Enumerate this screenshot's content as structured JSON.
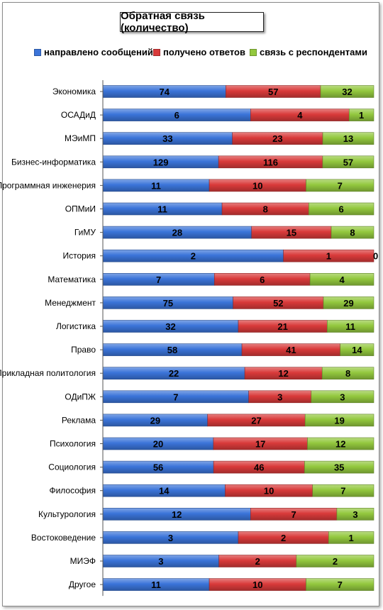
{
  "colors": {
    "series": [
      "#3b74d9",
      "#d93a3a",
      "#93c83e"
    ]
  },
  "chart_data": {
    "type": "bar",
    "orientation": "horizontal",
    "stacked": "100%",
    "title": "Обратная связь (количество)",
    "legend_position": "top",
    "categories": [
      "Экономика",
      "ОСАДиД",
      "МЭиМП",
      "Бизнес-информатика",
      "Программная инженерия",
      "ОПМиИ",
      "ГиМУ",
      "История",
      "Математика",
      "Менеджмент",
      "Логистика",
      "Право",
      "Прикладная политология",
      "ОДиПЖ",
      "Реклама",
      "Психология",
      "Социология",
      "Философия",
      "Культурология",
      "Востоковедение",
      "МИЭФ",
      "Другое"
    ],
    "series": [
      {
        "name": "направлено сообщений",
        "values": [
          74,
          6,
          33,
          129,
          11,
          11,
          28,
          2,
          7,
          75,
          32,
          58,
          22,
          7,
          29,
          20,
          56,
          14,
          12,
          3,
          3,
          11
        ]
      },
      {
        "name": "получено ответов",
        "values": [
          57,
          4,
          23,
          116,
          10,
          8,
          15,
          1,
          6,
          52,
          21,
          41,
          12,
          3,
          27,
          17,
          46,
          10,
          7,
          2,
          2,
          10
        ]
      },
      {
        "name": "связь с респондентами",
        "values": [
          32,
          1,
          13,
          57,
          7,
          6,
          8,
          0,
          4,
          29,
          11,
          14,
          8,
          3,
          19,
          12,
          35,
          7,
          3,
          1,
          2,
          7
        ]
      }
    ],
    "grid": false
  }
}
